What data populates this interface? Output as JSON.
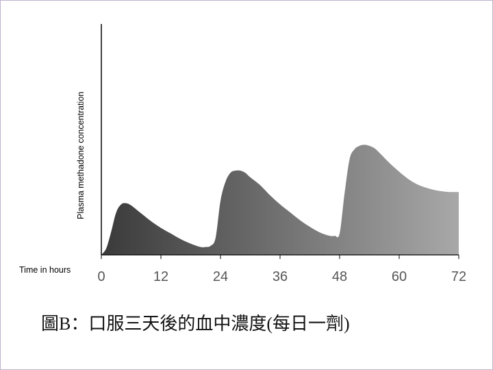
{
  "chart_data": {
    "type": "area",
    "ylabel": "Plasma methadone concentration",
    "xlabel": "Time in hours",
    "x_ticks": [
      0,
      12,
      24,
      36,
      48,
      60,
      72
    ],
    "xlim": [
      0,
      72
    ],
    "ylim": [
      0,
      1
    ],
    "y_ticks": [],
    "grid": false,
    "legend": "none",
    "fill_gradient": [
      "#3a3a3a",
      "#a8a8a8"
    ],
    "series": [
      {
        "x": [
          0,
          1,
          2,
          3,
          4,
          5,
          6,
          8,
          10,
          12,
          14,
          16,
          18,
          20,
          21,
          22,
          23,
          24,
          25,
          26,
          27,
          28,
          29,
          30,
          32,
          34,
          36,
          38,
          40,
          42,
          44,
          46,
          47,
          48,
          49,
          50,
          51,
          52,
          53,
          54,
          55,
          56,
          58,
          60,
          62,
          64,
          66,
          68,
          70,
          72
        ],
        "values": [
          0.0,
          0.06,
          0.21,
          0.38,
          0.45,
          0.46,
          0.44,
          0.37,
          0.3,
          0.24,
          0.19,
          0.14,
          0.1,
          0.07,
          0.07,
          0.08,
          0.15,
          0.48,
          0.65,
          0.73,
          0.75,
          0.75,
          0.73,
          0.69,
          0.62,
          0.53,
          0.45,
          0.38,
          0.31,
          0.25,
          0.2,
          0.17,
          0.17,
          0.19,
          0.55,
          0.85,
          0.94,
          0.97,
          0.98,
          0.97,
          0.95,
          0.91,
          0.82,
          0.74,
          0.67,
          0.62,
          0.59,
          0.57,
          0.56,
          0.56
        ]
      }
    ]
  },
  "caption": "圖B：口服三天後的血中濃度(每日一劑)"
}
